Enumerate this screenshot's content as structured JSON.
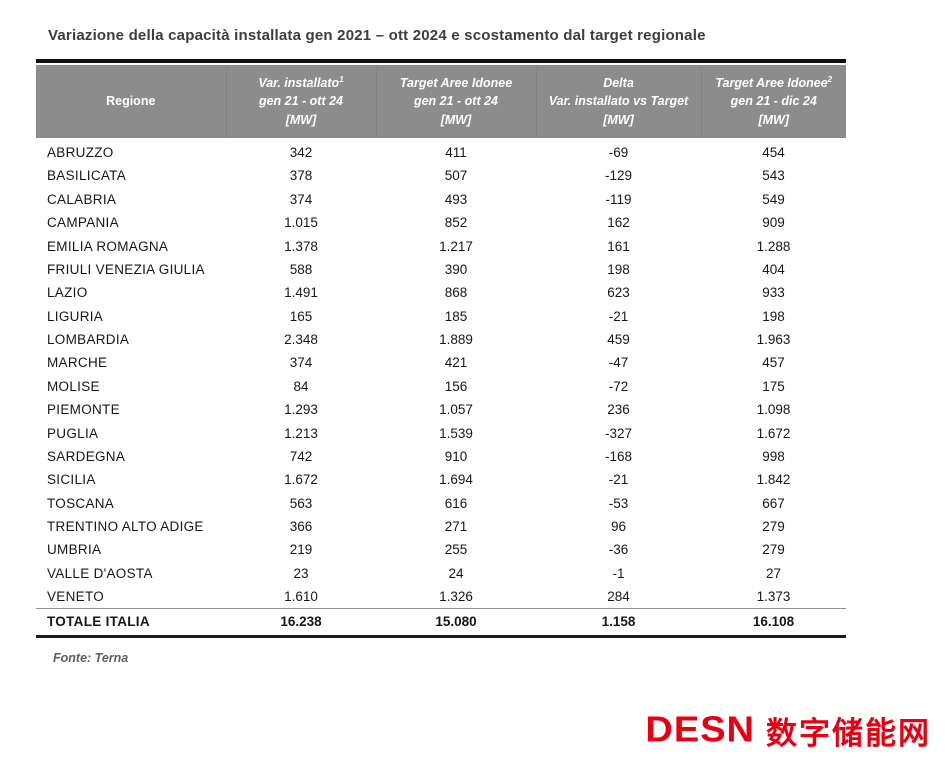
{
  "figure": {
    "source": "Fonte: Terna"
  },
  "chart_data": {
    "type": "table",
    "title": "Variazione della capacità installata gen 2021 – ott 2024 e scostamento dal target regionale",
    "columns": [
      {
        "lines": [
          "Regione"
        ],
        "sup": "",
        "italic": false
      },
      {
        "lines": [
          "Var. installato",
          "gen 21 - ott 24",
          "[MW]"
        ],
        "sup": "1",
        "italic": true
      },
      {
        "lines": [
          "Target Aree Idonee",
          "gen 21 - ott 24",
          "[MW]"
        ],
        "sup": "",
        "italic": true
      },
      {
        "lines": [
          "Delta",
          "Var. installato vs Target",
          "[MW]"
        ],
        "sup": "",
        "italic": true
      },
      {
        "lines": [
          "Target Aree Idonee",
          "gen 21 - dic 24",
          "[MW]"
        ],
        "sup": "2",
        "italic": true
      }
    ],
    "rows": [
      [
        "ABRUZZO",
        "342",
        "411",
        "-69",
        "454"
      ],
      [
        "BASILICATA",
        "378",
        "507",
        "-129",
        "543"
      ],
      [
        "CALABRIA",
        "374",
        "493",
        "-119",
        "549"
      ],
      [
        "CAMPANIA",
        "1.015",
        "852",
        "162",
        "909"
      ],
      [
        "EMILIA ROMAGNA",
        "1.378",
        "1.217",
        "161",
        "1.288"
      ],
      [
        "FRIULI VENEZIA GIULIA",
        "588",
        "390",
        "198",
        "404"
      ],
      [
        "LAZIO",
        "1.491",
        "868",
        "623",
        "933"
      ],
      [
        "LIGURIA",
        "165",
        "185",
        "-21",
        "198"
      ],
      [
        "LOMBARDIA",
        "2.348",
        "1.889",
        "459",
        "1.963"
      ],
      [
        "MARCHE",
        "374",
        "421",
        "-47",
        "457"
      ],
      [
        "MOLISE",
        "84",
        "156",
        "-72",
        "175"
      ],
      [
        "PIEMONTE",
        "1.293",
        "1.057",
        "236",
        "1.098"
      ],
      [
        "PUGLIA",
        "1.213",
        "1.539",
        "-327",
        "1.672"
      ],
      [
        "SARDEGNA",
        "742",
        "910",
        "-168",
        "998"
      ],
      [
        "SICILIA",
        "1.672",
        "1.694",
        "-21",
        "1.842"
      ],
      [
        "TOSCANA",
        "563",
        "616",
        "-53",
        "667"
      ],
      [
        "TRENTINO ALTO ADIGE",
        "366",
        "271",
        "96",
        "279"
      ],
      [
        "UMBRIA",
        "219",
        "255",
        "-36",
        "279"
      ],
      [
        "VALLE D'AOSTA",
        "23",
        "24",
        "-1",
        "27"
      ],
      [
        "VENETO",
        "1.610",
        "1.326",
        "284",
        "1.373"
      ]
    ],
    "total_row": [
      "TOTALE ITALIA",
      "16.238",
      "15.080",
      "1.158",
      "16.108"
    ],
    "source": "Fonte: Terna",
    "layout": {
      "grid": "off",
      "header_position": "top",
      "total_row_bold": true
    }
  },
  "logo": {
    "latin": "DESN",
    "chinese": "数字储能网",
    "color": "#e60012"
  },
  "colors": {
    "header_bg": "#8c8c8c",
    "header_text": "#ffffff",
    "title_text": "#3d3d3d",
    "accent_red": "#e60012",
    "rule_dark": "#0e0e0e"
  }
}
